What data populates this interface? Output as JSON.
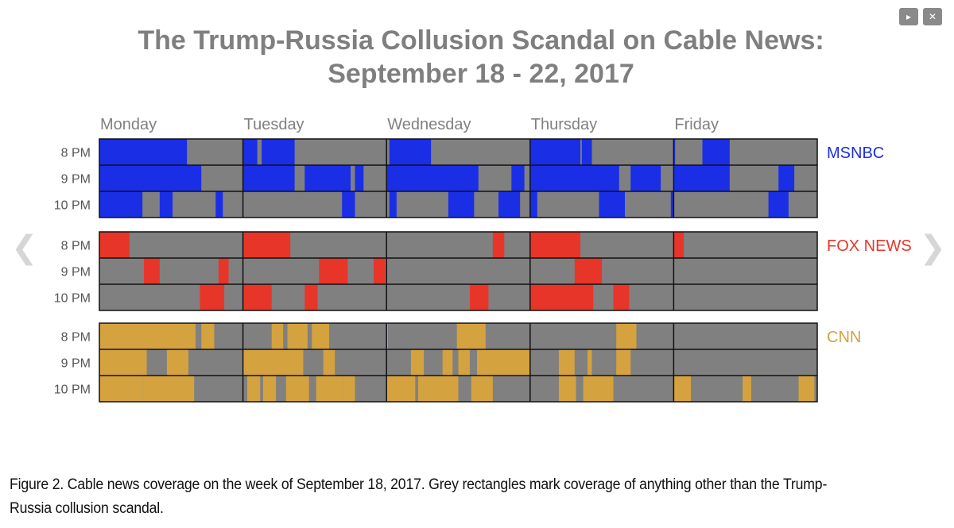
{
  "controls": {
    "play_icon": "play-icon",
    "close_icon": "close-icon"
  },
  "nav": {
    "prev_icon": "chevron-left-icon",
    "next_icon": "chevron-right-icon"
  },
  "caption": "Figure 2. Cable news coverage on the week of September 18, 2017. Grey rectangles mark coverage of anything other than the Trump-Russia collusion scandal.",
  "chart_data": {
    "type": "heatmap",
    "title": [
      "The Trump-Russia Collusion Scandal on Cable News:",
      "September 18 - 22, 2017"
    ],
    "days": [
      "Monday",
      "Tuesday",
      "Wednesday",
      "Thursday",
      "Friday"
    ],
    "hours": [
      "8 PM",
      "9 PM",
      "10 PM"
    ],
    "x_unit": "fraction of the week's hour slot (5 days = 0 to 5)",
    "other_color": "#808080",
    "series": [
      {
        "name": "MSNBC",
        "color": "#1a2ee6",
        "rows": [
          [
            [
              0,
              0.61
            ],
            [
              1,
              1.1
            ],
            [
              1.13,
              1.36
            ],
            [
              2.02,
              2.31
            ],
            [
              3,
              3.35
            ],
            [
              3.36,
              3.43
            ],
            [
              4,
              4.01
            ],
            [
              4.2,
              4.39
            ]
          ],
          [
            [
              0,
              0.71
            ],
            [
              1,
              1.36
            ],
            [
              1.43,
              1.75
            ],
            [
              1.78,
              1.84
            ],
            [
              2,
              2.64
            ],
            [
              2.87,
              2.96
            ],
            [
              3,
              3.62
            ],
            [
              3.7,
              3.91
            ],
            [
              4,
              4.39
            ],
            [
              4.73,
              4.84
            ]
          ],
          [
            [
              0,
              0.3
            ],
            [
              0.42,
              0.51
            ],
            [
              0.81,
              0.86
            ],
            [
              1.69,
              1.78
            ],
            [
              2.02,
              2.07
            ],
            [
              2.43,
              2.61
            ],
            [
              2.78,
              2.93
            ],
            [
              3,
              3.05
            ],
            [
              3.48,
              3.66
            ],
            [
              3.98,
              4.0
            ],
            [
              4.66,
              4.8
            ]
          ]
        ]
      },
      {
        "name": "FOX NEWS",
        "color": "#e8352a",
        "rows": [
          [
            [
              0,
              0.21
            ],
            [
              1,
              1.33
            ],
            [
              2.74,
              2.82
            ],
            [
              3,
              3.35
            ],
            [
              4,
              4.07
            ]
          ],
          [
            [
              0.31,
              0.42
            ],
            [
              0.83,
              0.9
            ],
            [
              1.53,
              1.73
            ],
            [
              1.91,
              1.99
            ],
            [
              3.31,
              3.5
            ]
          ],
          [
            [
              0.7,
              0.87
            ],
            [
              1,
              1.2
            ],
            [
              1.43,
              1.52
            ],
            [
              2.58,
              2.71
            ],
            [
              3,
              3.44
            ],
            [
              3.58,
              3.69
            ]
          ]
        ]
      },
      {
        "name": "CNN",
        "color": "#d4a23f",
        "rows": [
          [
            [
              0,
              0.67
            ],
            [
              0.71,
              0.8
            ],
            [
              1.2,
              1.28
            ],
            [
              1.31,
              1.45
            ],
            [
              1.48,
              1.6
            ],
            [
              2,
              2.01
            ],
            [
              2.49,
              2.69
            ],
            [
              3.6,
              3.74
            ]
          ],
          [
            [
              0,
              0.33
            ],
            [
              0.47,
              0.62
            ],
            [
              1,
              1.42
            ],
            [
              1.56,
              1.64
            ],
            [
              2.17,
              2.26
            ],
            [
              2.39,
              2.46
            ],
            [
              2.5,
              2.58
            ],
            [
              2.63,
              3.0
            ],
            [
              3.2,
              3.31
            ],
            [
              3.4,
              3.43
            ],
            [
              3.6,
              3.7
            ]
          ],
          [
            [
              0,
              0.3
            ],
            [
              0.3,
              0.66
            ],
            [
              1.03,
              1.12
            ],
            [
              1.14,
              1.23
            ],
            [
              1.3,
              1.46
            ],
            [
              1.51,
              1.69
            ],
            [
              1.69,
              1.78
            ],
            [
              2,
              2.2
            ],
            [
              2.22,
              2.5
            ],
            [
              2.59,
              2.74
            ],
            [
              3.2,
              3.32
            ],
            [
              3.37,
              3.58
            ],
            [
              4,
              4.12
            ],
            [
              4.48,
              4.54
            ],
            [
              4.87,
              4.98
            ]
          ]
        ]
      }
    ]
  }
}
